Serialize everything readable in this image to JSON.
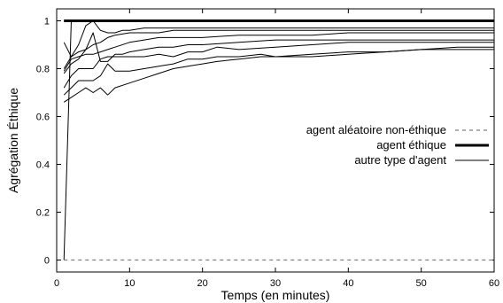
{
  "chart_data": {
    "type": "line",
    "xlabel": "Temps (en minutes)",
    "ylabel": "Agrégation Éthique",
    "xlim": [
      0,
      60
    ],
    "ylim": [
      -0.05,
      1.05
    ],
    "x_ticks": [
      0,
      10,
      20,
      30,
      40,
      50,
      60
    ],
    "y_ticks": [
      0,
      0.2,
      0.4,
      0.6,
      0.8,
      1
    ],
    "x_tick_labels": [
      "0",
      "10",
      "20",
      "30",
      "40",
      "50",
      "60"
    ],
    "y_tick_labels": [
      "0",
      "0.2",
      "0.4",
      "0.6",
      "0.8",
      "1"
    ],
    "grid": false,
    "legend_position": "center-right",
    "legend": [
      {
        "label": "agent aléatoire non-éthique",
        "style": "dashed"
      },
      {
        "label": "agent éthique",
        "style": "thick"
      },
      {
        "label": "autre type d'agent",
        "style": "thin"
      }
    ],
    "series": [
      {
        "name": "agent aléatoire non-éthique",
        "style": "dashed",
        "color": "#808080",
        "x": [
          1,
          60
        ],
        "y": [
          0,
          0
        ]
      },
      {
        "name": "agent éthique",
        "style": "thick",
        "color": "#000000",
        "x": [
          1,
          60
        ],
        "y": [
          1,
          1
        ]
      },
      {
        "name": "autre type d'agent",
        "style": "thin",
        "color": "#000000",
        "x": [
          1,
          2,
          5,
          10,
          15,
          20,
          30,
          40,
          50,
          60
        ],
        "y": [
          0,
          1,
          1,
          1,
          1,
          1,
          1,
          1,
          1,
          1
        ]
      },
      {
        "style": "thin",
        "color": "#000000",
        "x": [
          1,
          2,
          3,
          4,
          5,
          6,
          7,
          8,
          9,
          10,
          12,
          14,
          16,
          18,
          20,
          25,
          30,
          35,
          40,
          45,
          50,
          55,
          60
        ],
        "y": [
          0.91,
          0.85,
          0.9,
          0.98,
          1.0,
          0.96,
          0.95,
          0.95,
          0.96,
          0.96,
          0.97,
          0.97,
          0.97,
          0.97,
          0.97,
          0.97,
          0.97,
          0.97,
          0.97,
          0.97,
          0.97,
          0.97,
          0.97
        ]
      },
      {
        "style": "thin",
        "color": "#000000",
        "x": [
          1,
          2,
          3,
          4,
          5,
          6,
          7,
          8,
          10,
          12,
          14,
          16,
          18,
          20,
          25,
          30,
          35,
          40,
          45,
          50,
          55,
          60
        ],
        "y": [
          0.8,
          0.85,
          0.87,
          0.88,
          0.9,
          0.91,
          0.93,
          0.94,
          0.95,
          0.95,
          0.95,
          0.96,
          0.96,
          0.96,
          0.96,
          0.96,
          0.96,
          0.96,
          0.96,
          0.96,
          0.96,
          0.96
        ]
      },
      {
        "style": "thin",
        "color": "#000000",
        "x": [
          1,
          2,
          3,
          4,
          5,
          6,
          7,
          8,
          10,
          12,
          14,
          16,
          18,
          20,
          25,
          30,
          35,
          40,
          45,
          50,
          55,
          60
        ],
        "y": [
          0.79,
          0.84,
          0.85,
          0.86,
          0.86,
          0.87,
          0.88,
          0.89,
          0.91,
          0.92,
          0.93,
          0.93,
          0.93,
          0.93,
          0.94,
          0.94,
          0.94,
          0.95,
          0.95,
          0.95,
          0.95,
          0.95
        ]
      },
      {
        "style": "thin",
        "color": "#000000",
        "x": [
          1,
          2,
          3,
          4,
          5,
          6,
          7,
          8,
          9,
          10,
          12,
          14,
          16,
          18,
          20,
          25,
          30,
          35,
          40,
          45,
          50,
          55,
          60
        ],
        "y": [
          0.78,
          0.82,
          0.84,
          0.88,
          0.95,
          0.83,
          0.83,
          0.86,
          0.86,
          0.87,
          0.88,
          0.89,
          0.89,
          0.9,
          0.9,
          0.91,
          0.92,
          0.92,
          0.92,
          0.92,
          0.92,
          0.92,
          0.92
        ]
      },
      {
        "style": "thin",
        "color": "#000000",
        "x": [
          1,
          2,
          3,
          4,
          5,
          6,
          7,
          8,
          10,
          12,
          14,
          16,
          18,
          20,
          22,
          25,
          30,
          35,
          40,
          45,
          50,
          55,
          60
        ],
        "y": [
          0.72,
          0.77,
          0.8,
          0.8,
          0.8,
          0.84,
          0.85,
          0.85,
          0.85,
          0.85,
          0.86,
          0.85,
          0.87,
          0.87,
          0.89,
          0.88,
          0.89,
          0.9,
          0.91,
          0.91,
          0.91,
          0.91,
          0.91
        ]
      },
      {
        "style": "thin",
        "color": "#000000",
        "x": [
          1,
          2,
          3,
          4,
          5,
          6,
          7,
          8,
          10,
          12,
          14,
          16,
          18,
          20,
          22,
          25,
          28,
          30,
          35,
          40,
          45,
          50,
          55,
          60
        ],
        "y": [
          0.69,
          0.72,
          0.75,
          0.75,
          0.75,
          0.77,
          0.82,
          0.79,
          0.79,
          0.8,
          0.81,
          0.82,
          0.84,
          0.84,
          0.85,
          0.85,
          0.86,
          0.85,
          0.86,
          0.87,
          0.87,
          0.88,
          0.89,
          0.89
        ]
      },
      {
        "style": "thin",
        "color": "#000000",
        "x": [
          1,
          2,
          3,
          4,
          5,
          6,
          7,
          8,
          10,
          12,
          14,
          16,
          18,
          20,
          22,
          25,
          28,
          30,
          35,
          40,
          45,
          50,
          55,
          60
        ],
        "y": [
          0.66,
          0.68,
          0.7,
          0.72,
          0.7,
          0.72,
          0.69,
          0.72,
          0.74,
          0.76,
          0.78,
          0.8,
          0.81,
          0.82,
          0.83,
          0.84,
          0.85,
          0.85,
          0.85,
          0.86,
          0.87,
          0.88,
          0.88,
          0.88
        ]
      }
    ]
  }
}
